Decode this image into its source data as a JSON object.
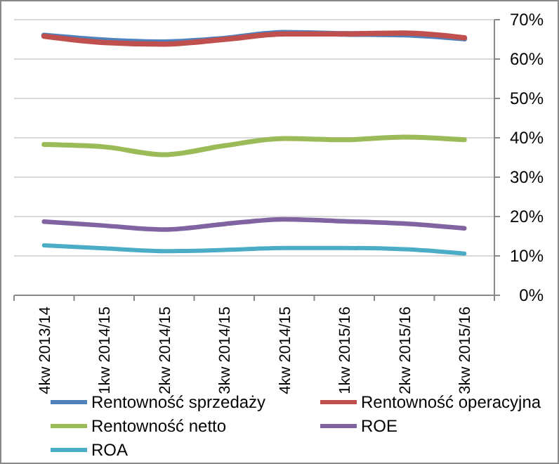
{
  "chart_data": {
    "type": "line",
    "categories": [
      "4kw 2013/14",
      "1kw 2014/15",
      "2kw 2014/15",
      "3kw 2014/15",
      "4kw 2014/15",
      "1kw 2015/16",
      "2kw 2015/16",
      "3kw 2015/16"
    ],
    "series": [
      {
        "name": "Rentowność sprzedaży",
        "color": "#4f81bd",
        "values": [
          66.0,
          64.8,
          64.3,
          65.2,
          66.7,
          66.4,
          66.2,
          65.2
        ]
      },
      {
        "name": "Rentowność operacyjna",
        "color": "#c0504d",
        "values": [
          65.8,
          64.2,
          63.8,
          65.0,
          66.4,
          66.4,
          66.6,
          65.4
        ]
      },
      {
        "name": "Rentowność netto",
        "color": "#9bbb59",
        "values": [
          38.3,
          37.7,
          35.7,
          38.0,
          39.8,
          39.5,
          40.2,
          39.5
        ]
      },
      {
        "name": "ROE",
        "color": "#8064a2",
        "values": [
          18.7,
          17.7,
          16.7,
          18.1,
          19.3,
          18.8,
          18.2,
          17.0
        ]
      },
      {
        "name": "ROA",
        "color": "#4bacc6",
        "values": [
          12.7,
          11.9,
          11.2,
          11.5,
          12.0,
          12.0,
          11.7,
          10.6
        ]
      }
    ],
    "ylim": [
      0,
      70
    ],
    "yticks": [
      {
        "value": 0,
        "label": "0%"
      },
      {
        "value": 10,
        "label": "10%"
      },
      {
        "value": 20,
        "label": "20%"
      },
      {
        "value": 30,
        "label": "30%"
      },
      {
        "value": 40,
        "label": "40%"
      },
      {
        "value": 50,
        "label": "50%"
      },
      {
        "value": 60,
        "label": "60%"
      },
      {
        "value": 70,
        "label": "70%"
      }
    ],
    "grid": "y",
    "legend": "bottom",
    "marker": "none",
    "line_style": "solid"
  }
}
